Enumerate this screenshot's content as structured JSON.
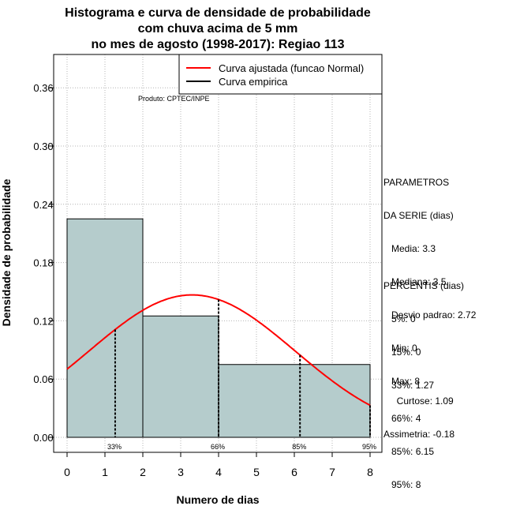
{
  "chart_data": {
    "type": "histogram",
    "title_lines": [
      "Histograma e curva de densidade de probabilidade",
      "com chuva acima de 5 mm",
      "no mes de agosto (1998-2017): Regiao 113"
    ],
    "xlabel": "Numero de dias",
    "ylabel": "Densidade de probabilidade",
    "xlim": [
      -0.3,
      8.3
    ],
    "ylim": [
      0,
      0.39
    ],
    "x_ticks": [
      "0",
      "1",
      "2",
      "3",
      "4",
      "5",
      "6",
      "7",
      "8"
    ],
    "y_ticks": [
      "0.00",
      "0.06",
      "0.12",
      "0.18",
      "0.24",
      "0.30",
      "0.36"
    ],
    "grid": true,
    "bins": [
      {
        "x0": 0,
        "x1": 2,
        "density": 0.225
      },
      {
        "x0": 2,
        "x1": 4,
        "density": 0.125
      },
      {
        "x0": 4,
        "x1": 8,
        "density": 0.075
      }
    ],
    "bar_color": "#b5cccc",
    "fit_curve": {
      "name": "Curva ajustada (funcao Normal)",
      "color": "#ff0000",
      "mean": 3.3,
      "sd": 2.72
    },
    "percentile_markers": [
      {
        "label": "33%",
        "x": 1.27
      },
      {
        "label": "66%",
        "x": 4
      },
      {
        "label": "85%",
        "x": 6.15
      },
      {
        "label": "95%",
        "x": 8
      }
    ],
    "legend": {
      "placement": "top-right",
      "entries": [
        {
          "label": "Curva ajustada (funcao Normal)",
          "color": "#ff0000"
        },
        {
          "label": "Curva empirica",
          "color": "#000000"
        }
      ]
    },
    "credit": "Produto: CPTEC/INPE"
  },
  "stats": {
    "params_lines": [
      "PARAMETROS",
      "DA SERIE (dias)",
      "   Media: 3.3",
      "   Mediana: 3.5",
      "   Desvio padrao: 2.72",
      "   Min: 0",
      "   Max: 8"
    ],
    "percentis_lines": [
      "PERCENTIS (dias)",
      "   5%: 0",
      "   15%: 0",
      "   33%: 1.27",
      "   66%: 4",
      "   85%: 6.15",
      "   95%: 8"
    ],
    "shape_lines": [
      "     Curtose: 1.09",
      "Assimetria: -0.18"
    ]
  }
}
